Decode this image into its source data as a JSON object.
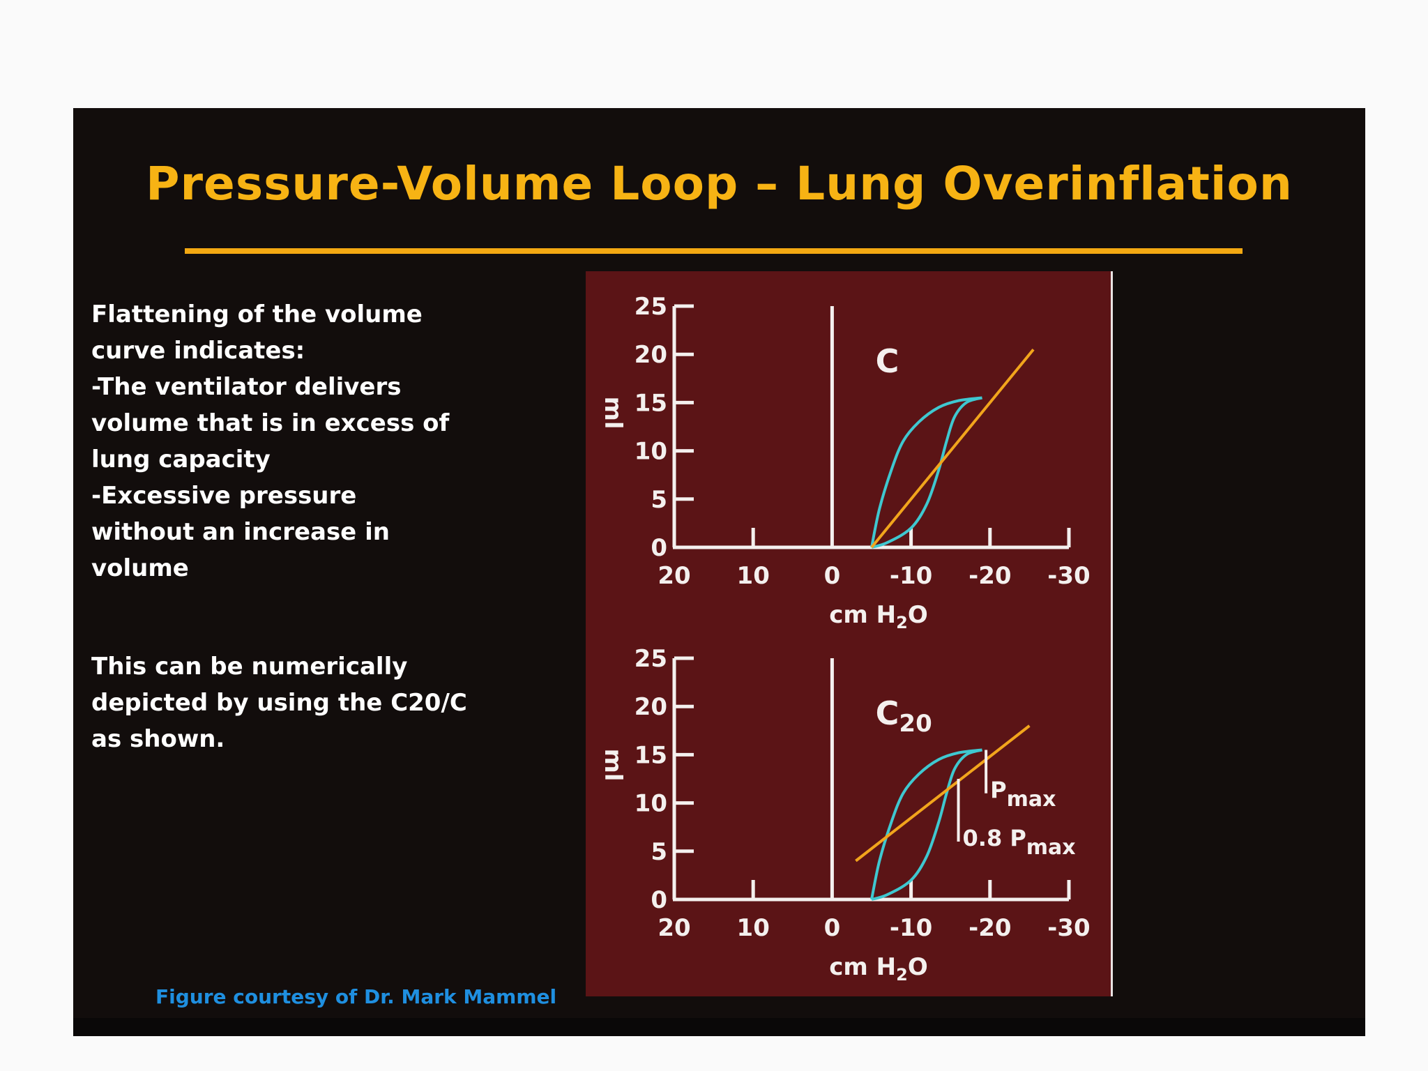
{
  "slide": {
    "title": "Pressure-Volume Loop – Lung Overinflation",
    "paragraph1": [
      "Flattening of the volume",
      "curve indicates:",
      "-The ventilator delivers",
      "volume that is in excess of",
      "lung capacity",
      "-Excessive pressure",
      "without an increase in",
      "volume"
    ],
    "paragraph2": [
      "This can be numerically",
      "depicted by using the C20/C",
      "as shown."
    ],
    "credit": "Figure  courtesy of Dr. Mark Mammel",
    "colors": {
      "title": "#f7b314",
      "rule": "#f3a812",
      "credit": "#1f8fe0",
      "figure_bg": "#5b1416",
      "loop": "#3fc8d0",
      "compliance_line": "#f2a51c"
    }
  },
  "chart_data": [
    {
      "type": "line",
      "panel_label": "C",
      "xlabel": "cm H2O",
      "ylabel": "ml",
      "x_ticks": [
        20,
        10,
        0,
        -10,
        -20,
        -30
      ],
      "y_ticks": [
        0,
        5,
        10,
        15,
        20,
        25
      ],
      "xlim": [
        20,
        -30
      ],
      "ylim": [
        0,
        25
      ],
      "series": [
        {
          "role": "loop-upper",
          "x": [
            -5,
            -6,
            -7.5,
            -9,
            -11,
            -13.5,
            -16,
            -19
          ],
          "y": [
            0,
            4,
            8,
            11,
            13,
            14.5,
            15.2,
            15.5
          ]
        },
        {
          "role": "loop-lower",
          "x": [
            -5,
            -7,
            -10,
            -12,
            -13.5,
            -14.5,
            -15.5,
            -17,
            -19
          ],
          "y": [
            0,
            0.5,
            2,
            4.5,
            8,
            11,
            13.5,
            15,
            15.5
          ]
        },
        {
          "role": "compliance-line",
          "x": [
            -5,
            -25.5
          ],
          "y": [
            0,
            20.5
          ]
        }
      ],
      "annotations": []
    },
    {
      "type": "line",
      "panel_label": "C20",
      "xlabel": "cm H2O",
      "ylabel": "ml",
      "x_ticks": [
        20,
        10,
        0,
        -10,
        -20,
        -30
      ],
      "y_ticks": [
        0,
        5,
        10,
        15,
        20,
        25
      ],
      "xlim": [
        20,
        -30
      ],
      "ylim": [
        0,
        25
      ],
      "series": [
        {
          "role": "loop-upper",
          "x": [
            -5,
            -6,
            -7.5,
            -9,
            -11,
            -13.5,
            -16,
            -19
          ],
          "y": [
            0,
            4,
            8,
            11,
            13,
            14.5,
            15.2,
            15.5
          ]
        },
        {
          "role": "loop-lower",
          "x": [
            -5,
            -7,
            -10,
            -12,
            -13.5,
            -14.5,
            -15.5,
            -17,
            -19
          ],
          "y": [
            0,
            0.5,
            2,
            4.5,
            8,
            11,
            13.5,
            15,
            15.5
          ]
        },
        {
          "role": "compliance-line",
          "x": [
            -3,
            -25
          ],
          "y": [
            4,
            18
          ]
        }
      ],
      "annotations": [
        {
          "text": "P",
          "subscript": "max",
          "at_x": -19.5,
          "y_from": 15.5,
          "y_to": 11
        },
        {
          "text": "0.8 P",
          "subscript": "max",
          "at_x": -16,
          "y_from": 12.5,
          "y_to": 6
        }
      ]
    }
  ]
}
